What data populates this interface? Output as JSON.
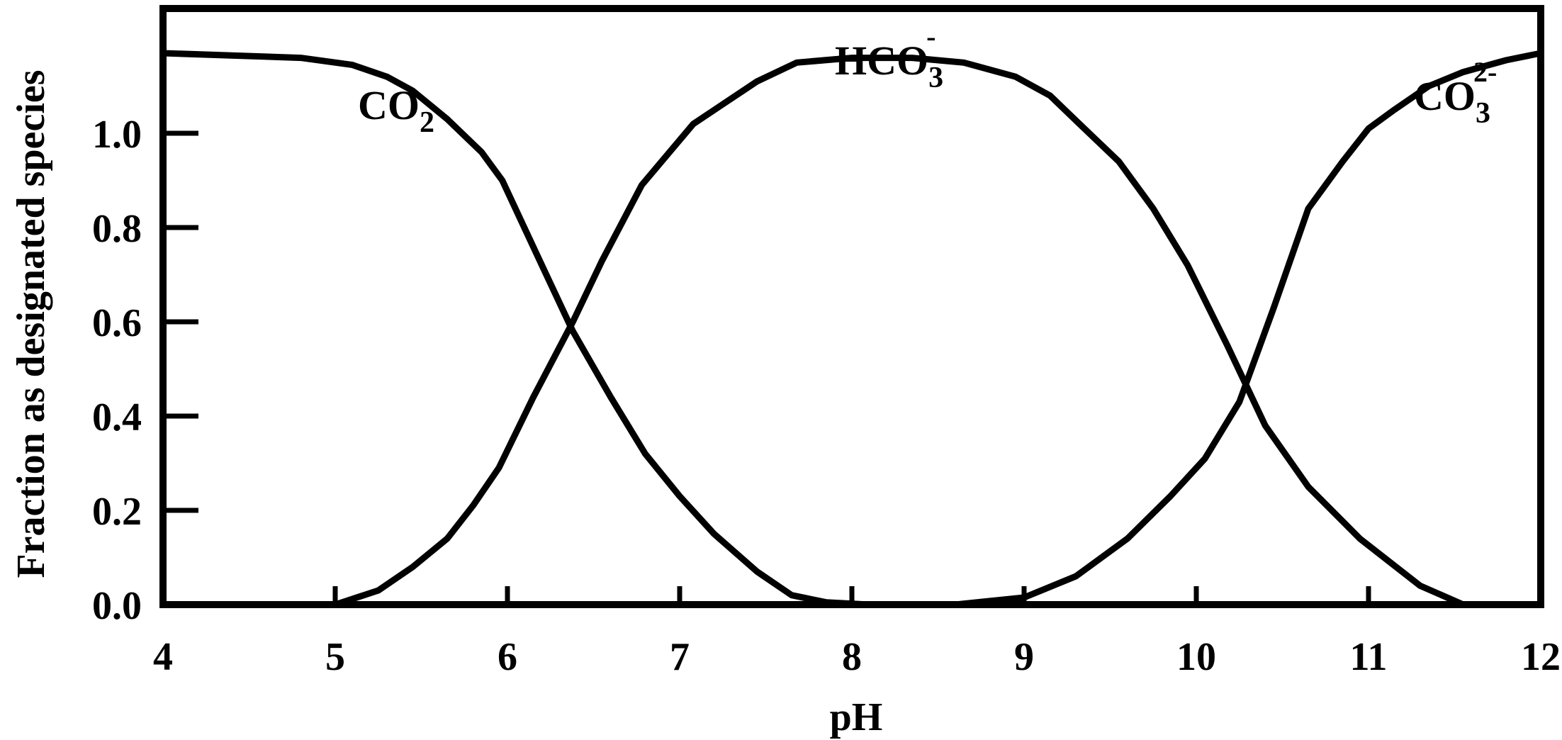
{
  "chart_data": {
    "type": "line",
    "xlabel": "pH",
    "ylabel": "Fraction as designated species",
    "xlim": [
      4,
      12
    ],
    "ylim": [
      0,
      1.17
    ],
    "x_ticks": [
      "4",
      "5",
      "6",
      "7",
      "8",
      "9",
      "10",
      "11",
      "12"
    ],
    "y_ticks": [
      "0.0",
      "0.2",
      "0.4",
      "0.6",
      "0.8",
      "1.0"
    ],
    "grid": false,
    "series": [
      {
        "name": "CO2",
        "label": {
          "base": "CO",
          "sub": "2",
          "sup": ""
        },
        "x": [
          4.0,
          4.8,
          5.1,
          5.3,
          5.45,
          5.65,
          5.85,
          5.97,
          6.2,
          6.38,
          6.6,
          6.8,
          7.0,
          7.2,
          7.45,
          7.65,
          7.85,
          8.1,
          8.4
        ],
        "y": [
          1.17,
          1.16,
          1.145,
          1.12,
          1.09,
          1.03,
          0.96,
          0.9,
          0.72,
          0.58,
          0.44,
          0.32,
          0.23,
          0.15,
          0.07,
          0.02,
          0.005,
          0.0,
          0.0
        ]
      },
      {
        "name": "HCO3-",
        "label": {
          "base": "HCO",
          "sub": "3",
          "sup": "-"
        },
        "x": [
          4.9,
          5.0,
          5.25,
          5.45,
          5.65,
          5.8,
          5.95,
          6.15,
          6.38,
          6.55,
          6.78,
          7.08,
          7.45,
          7.68,
          8.0,
          8.35,
          8.65,
          8.95,
          9.15,
          9.35,
          9.55,
          9.75,
          9.95,
          10.18,
          10.4,
          10.65,
          10.95,
          11.3,
          11.55
        ],
        "y": [
          0.0,
          0.0,
          0.03,
          0.08,
          0.14,
          0.21,
          0.29,
          0.44,
          0.6,
          0.73,
          0.89,
          1.02,
          1.11,
          1.15,
          1.16,
          1.16,
          1.15,
          1.12,
          1.08,
          1.01,
          0.94,
          0.84,
          0.72,
          0.55,
          0.38,
          0.25,
          0.14,
          0.04,
          0.0
        ]
      },
      {
        "name": "CO32-",
        "label": {
          "base": "CO",
          "sub": "3",
          "sup": "2-"
        },
        "x": [
          8.6,
          9.0,
          9.3,
          9.6,
          9.85,
          10.05,
          10.25,
          10.45,
          10.65,
          10.85,
          11.0,
          11.15,
          11.35,
          11.55,
          11.8,
          12.0
        ],
        "y": [
          0.0,
          0.015,
          0.06,
          0.14,
          0.23,
          0.31,
          0.43,
          0.63,
          0.84,
          0.94,
          1.01,
          1.05,
          1.1,
          1.13,
          1.155,
          1.17
        ]
      }
    ]
  }
}
